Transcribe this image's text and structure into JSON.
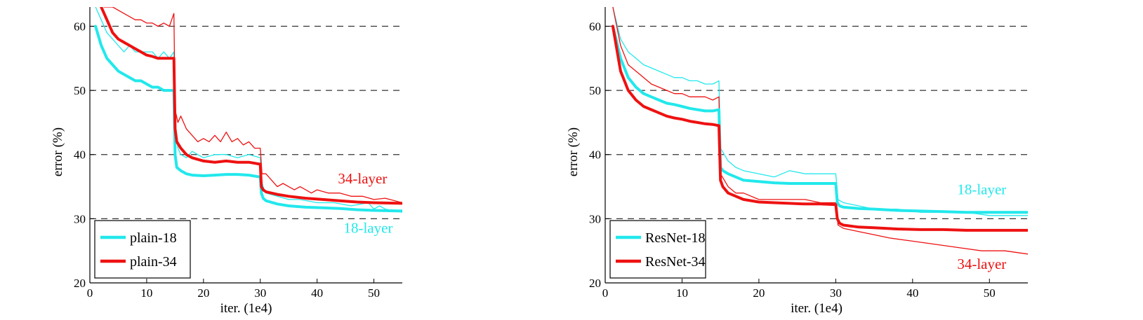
{
  "chart_data": [
    {
      "type": "line",
      "xlabel": "iter. (1e4)",
      "ylabel": "error (%)",
      "xlim": [
        0,
        55
      ],
      "ylim": [
        20,
        63
      ],
      "xticks": [
        0,
        10,
        20,
        30,
        40,
        50
      ],
      "yticks": [
        20,
        30,
        40,
        50,
        60
      ],
      "grid": "dashed horizontal at 30, 40, 50, 60",
      "legend_position": "bottom-left",
      "colors": {
        "cyan": "#22e8ec",
        "red": "#ee1111"
      },
      "legend": [
        "plain-18",
        "plain-34"
      ],
      "annotations": [
        {
          "text": "34-layer",
          "color": "red",
          "x": 48,
          "y": 35.5
        },
        {
          "text": "18-layer",
          "color": "cyan",
          "x": 49,
          "y": 27.8
        }
      ],
      "series": [
        {
          "name": "plain-18",
          "color": "cyan",
          "role": "train",
          "width": 1.3,
          "x": [
            1,
            2,
            3,
            4,
            5,
            6,
            7,
            8,
            9,
            10,
            11,
            12,
            13,
            14,
            14.8,
            15,
            15.5,
            16,
            17,
            18,
            20,
            22,
            24,
            26,
            28,
            30,
            30.2,
            30.5,
            31,
            33,
            35,
            37,
            40,
            43,
            46,
            49,
            50,
            51,
            52,
            55
          ],
          "y": [
            63,
            61,
            59,
            58,
            57,
            56,
            57,
            56,
            56,
            56,
            56,
            55,
            56,
            55,
            56,
            45,
            41,
            40,
            39.5,
            40.5,
            39.5,
            40,
            40,
            39.5,
            40,
            39.5,
            36,
            35,
            34,
            33.5,
            33,
            33,
            32.5,
            32.5,
            32,
            32.5,
            31.5,
            32,
            31.5,
            31
          ]
        },
        {
          "name": "plain-18",
          "color": "cyan",
          "role": "val",
          "width": 4,
          "x": [
            1,
            2,
            3,
            4,
            5,
            6,
            7,
            8,
            9,
            10,
            11,
            12,
            13,
            14,
            14.8,
            15,
            15.3,
            16,
            17,
            18,
            20,
            22,
            24,
            26,
            28,
            30,
            30.2,
            30.5,
            31,
            33,
            35,
            38,
            41,
            44,
            47,
            50,
            55
          ],
          "y": [
            60,
            57,
            55,
            54,
            53,
            52.5,
            52,
            51.5,
            51.5,
            51,
            50.5,
            50.5,
            50,
            50,
            50,
            40,
            38,
            37.5,
            37,
            36.8,
            36.7,
            36.8,
            36.9,
            36.9,
            36.8,
            36.5,
            34,
            33.2,
            32.8,
            32.3,
            32,
            31.8,
            31.7,
            31.6,
            31.4,
            31.3,
            31.2
          ]
        },
        {
          "name": "plain-34",
          "color": "red",
          "role": "train",
          "width": 1.3,
          "x": [
            2.5,
            4,
            6,
            8,
            9,
            10,
            11,
            12,
            13,
            14,
            14.8,
            15,
            15.5,
            16,
            17,
            18,
            19,
            20,
            21,
            22,
            23,
            24,
            25,
            26,
            27,
            28,
            29,
            30,
            30.3,
            31,
            32,
            33,
            34,
            35,
            36,
            37,
            38,
            39,
            40,
            42,
            44,
            46,
            48,
            50,
            52,
            55
          ],
          "y": [
            63,
            63,
            62,
            61,
            61,
            60.5,
            60.5,
            60,
            60.5,
            60,
            62,
            47,
            45,
            46,
            44,
            43,
            42,
            42.5,
            42,
            43,
            42,
            43.5,
            42,
            42.5,
            41.5,
            42,
            41,
            41,
            37,
            37,
            36,
            35,
            35.5,
            35,
            34.5,
            35,
            34.5,
            34,
            34.5,
            34,
            34,
            33.5,
            33.5,
            33,
            33.2,
            32.5
          ]
        },
        {
          "name": "plain-34",
          "color": "red",
          "role": "val",
          "width": 4,
          "x": [
            2,
            3,
            4,
            5,
            6,
            7,
            8,
            9,
            10,
            11,
            12,
            13,
            14,
            14.8,
            15,
            15.3,
            16,
            17,
            18,
            20,
            22,
            24,
            26,
            28,
            30,
            30.2,
            30.5,
            31,
            33,
            35,
            38,
            41,
            44,
            47,
            50,
            55
          ],
          "y": [
            63,
            61,
            59,
            58,
            57.5,
            57,
            56.5,
            56,
            55.5,
            55.3,
            55,
            55,
            55,
            55,
            44,
            42,
            41,
            40,
            39.5,
            39,
            38.8,
            39,
            38.8,
            38.8,
            38.5,
            35,
            34.5,
            34.2,
            33.8,
            33.5,
            33.2,
            33,
            32.8,
            32.6,
            32.5,
            32.4
          ]
        }
      ]
    },
    {
      "type": "line",
      "xlabel": "iter. (1e4)",
      "ylabel": "error (%)",
      "xlim": [
        0,
        55
      ],
      "ylim": [
        20,
        63
      ],
      "xticks": [
        0,
        10,
        20,
        30,
        40,
        50
      ],
      "yticks": [
        20,
        30,
        40,
        50,
        60
      ],
      "grid": "dashed horizontal at 30, 40, 50, 60",
      "legend_position": "bottom-left",
      "colors": {
        "cyan": "#22e8ec",
        "red": "#ee1111"
      },
      "legend": [
        "ResNet-18",
        "ResNet-34"
      ],
      "annotations": [
        {
          "text": "18-layer",
          "color": "cyan",
          "x": 49,
          "y": 33.8
        },
        {
          "text": "34-layer",
          "color": "red",
          "x": 49,
          "y": 22.2
        }
      ],
      "series": [
        {
          "name": "ResNet-18",
          "color": "cyan",
          "role": "train",
          "width": 1.3,
          "x": [
            1,
            2,
            3,
            4,
            5,
            6,
            7,
            8,
            9,
            10,
            11,
            12,
            13,
            14,
            14.8,
            15,
            15.5,
            16,
            17,
            18,
            20,
            22,
            24,
            26,
            28,
            30,
            30.3,
            31,
            33,
            35,
            38,
            41,
            44,
            47,
            50,
            52,
            55
          ],
          "y": [
            63,
            58,
            56,
            55,
            54,
            53.5,
            53,
            52.5,
            52,
            52,
            51.5,
            51.5,
            51,
            51,
            51.5,
            41,
            40,
            39,
            38,
            37.5,
            37,
            36.5,
            37.5,
            37,
            37,
            37,
            33,
            32.5,
            32,
            31.5,
            31.5,
            31,
            31,
            31,
            30.5,
            30.5,
            30.5
          ]
        },
        {
          "name": "ResNet-18",
          "color": "cyan",
          "role": "val",
          "width": 4,
          "x": [
            1,
            2,
            3,
            4,
            5,
            6,
            7,
            8,
            9,
            10,
            11,
            12,
            13,
            14,
            14.8,
            15,
            15.3,
            16,
            17,
            18,
            20,
            22,
            24,
            26,
            28,
            30,
            30.2,
            30.5,
            31,
            33,
            35,
            38,
            41,
            44,
            47,
            50,
            55
          ],
          "y": [
            60,
            55,
            52,
            50.5,
            49.5,
            49,
            48.5,
            48,
            47.8,
            47.5,
            47.2,
            47,
            46.8,
            46.8,
            47,
            38,
            37.5,
            37,
            36.5,
            36,
            35.8,
            35.6,
            35.5,
            35.5,
            35.5,
            35.5,
            32.5,
            32,
            31.8,
            31.6,
            31.5,
            31.3,
            31.2,
            31.1,
            31,
            31,
            31
          ]
        },
        {
          "name": "ResNet-34",
          "color": "red",
          "role": "train",
          "width": 1.3,
          "x": [
            1,
            2,
            3,
            4,
            5,
            6,
            7,
            8,
            9,
            10,
            11,
            12,
            13,
            14,
            14.8,
            15,
            15.5,
            16,
            17,
            18,
            20,
            22,
            24,
            26,
            28,
            30,
            30.3,
            31,
            33,
            35,
            37,
            40,
            43,
            46,
            49,
            52,
            55
          ],
          "y": [
            63,
            57,
            54,
            53,
            52,
            51,
            50.5,
            50,
            49.5,
            49.5,
            49,
            49,
            49,
            48.5,
            49,
            37,
            36,
            35,
            34,
            34,
            33,
            33,
            33,
            33,
            32.5,
            32.5,
            29,
            28.5,
            28,
            27.5,
            27,
            26.5,
            26,
            25.5,
            25,
            25,
            24.5
          ]
        },
        {
          "name": "ResNet-34",
          "color": "red",
          "role": "val",
          "width": 4,
          "x": [
            1,
            2,
            3,
            4,
            5,
            6,
            7,
            8,
            9,
            10,
            11,
            12,
            13,
            14,
            14.8,
            15,
            15.3,
            16,
            17,
            18,
            20,
            22,
            24,
            26,
            28,
            30,
            30.2,
            30.5,
            31,
            33,
            35,
            38,
            41,
            44,
            47,
            50,
            55
          ],
          "y": [
            60,
            53,
            50,
            48.5,
            47.5,
            47,
            46.5,
            46,
            45.7,
            45.5,
            45.2,
            45,
            44.8,
            44.7,
            44.5,
            36,
            35,
            34,
            33.5,
            33,
            32.6,
            32.5,
            32.4,
            32.3,
            32.3,
            32.2,
            30,
            29.3,
            29,
            28.7,
            28.6,
            28.4,
            28.3,
            28.3,
            28.2,
            28.2,
            28.2
          ]
        }
      ]
    }
  ]
}
